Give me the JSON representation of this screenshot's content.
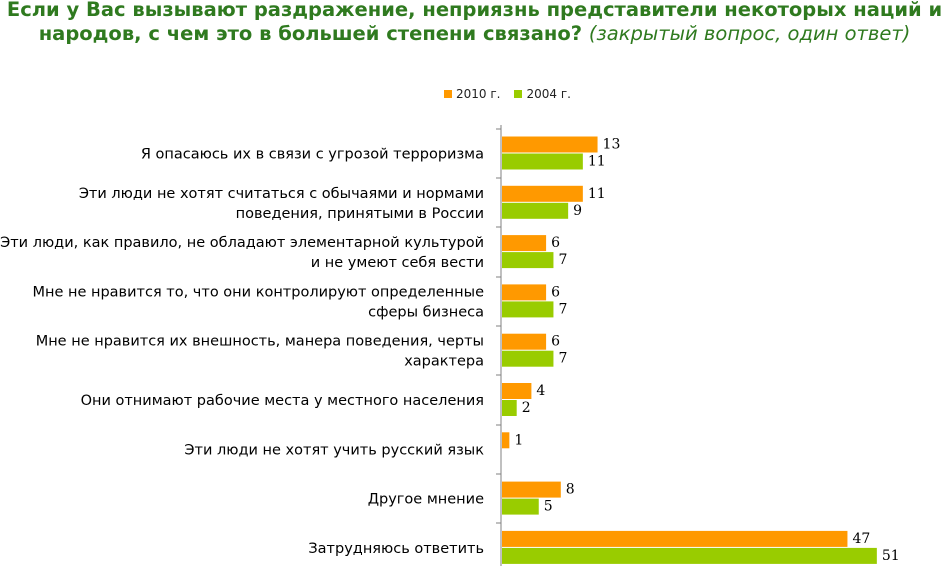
{
  "title": {
    "main": "Если у Вас вызывают раздражение, неприязнь представители некоторых наций и народов, с чем это в большей степени связано?",
    "qualifier": "(закрытый вопрос, один ответ)"
  },
  "colors": {
    "series_2010": "#ff9900",
    "series_2004": "#99cc00",
    "axis": "#808080",
    "title": "#2f7a1f"
  },
  "chart_data": {
    "type": "bar",
    "orientation": "horizontal",
    "categories": [
      "Я опасаюсь их в связи с угрозой терроризма",
      "Эти люди не хотят считаться с обычаями и нормами поведения, принятыми в России",
      "Эти люди, как правило, не обладают элементарной культурой и не умеют себя вести",
      "Мне не нравится то, что они контролируют определенные сферы бизнеса",
      "Мне не нравится их внешность, манера поведения, черты характера",
      "Они отнимают рабочие места у местного населения",
      "Эти люди не хотят учить русский язык",
      "Другое мнение",
      "Затрудняюсь ответить"
    ],
    "category_lines": [
      [
        "Я опасаюсь их в связи с угрозой терроризма"
      ],
      [
        "Эти люди не хотят считаться с обычаями и нормами",
        "поведения, принятыми в России"
      ],
      [
        "Эти люди, как правило, не обладают элементарной культурой",
        "и не умеют себя вести"
      ],
      [
        "Мне не нравится то, что они контролируют определенные",
        "сферы бизнеса"
      ],
      [
        "Мне не нравится их внешность, манера поведения, черты",
        "характера"
      ],
      [
        "Они отнимают рабочие места у местного населения"
      ],
      [
        "Эти люди не хотят учить русский язык"
      ],
      [
        "Другое мнение"
      ],
      [
        "Затрудняюсь ответить"
      ]
    ],
    "series": [
      {
        "name": "2010 г.",
        "values": [
          13,
          11,
          6,
          6,
          6,
          4,
          1,
          8,
          47
        ]
      },
      {
        "name": "2004 г.",
        "values": [
          11,
          9,
          7,
          7,
          7,
          2,
          0,
          5,
          51
        ]
      }
    ],
    "xlim": [
      0,
      54
    ],
    "grid": false,
    "legend_position": "top"
  }
}
